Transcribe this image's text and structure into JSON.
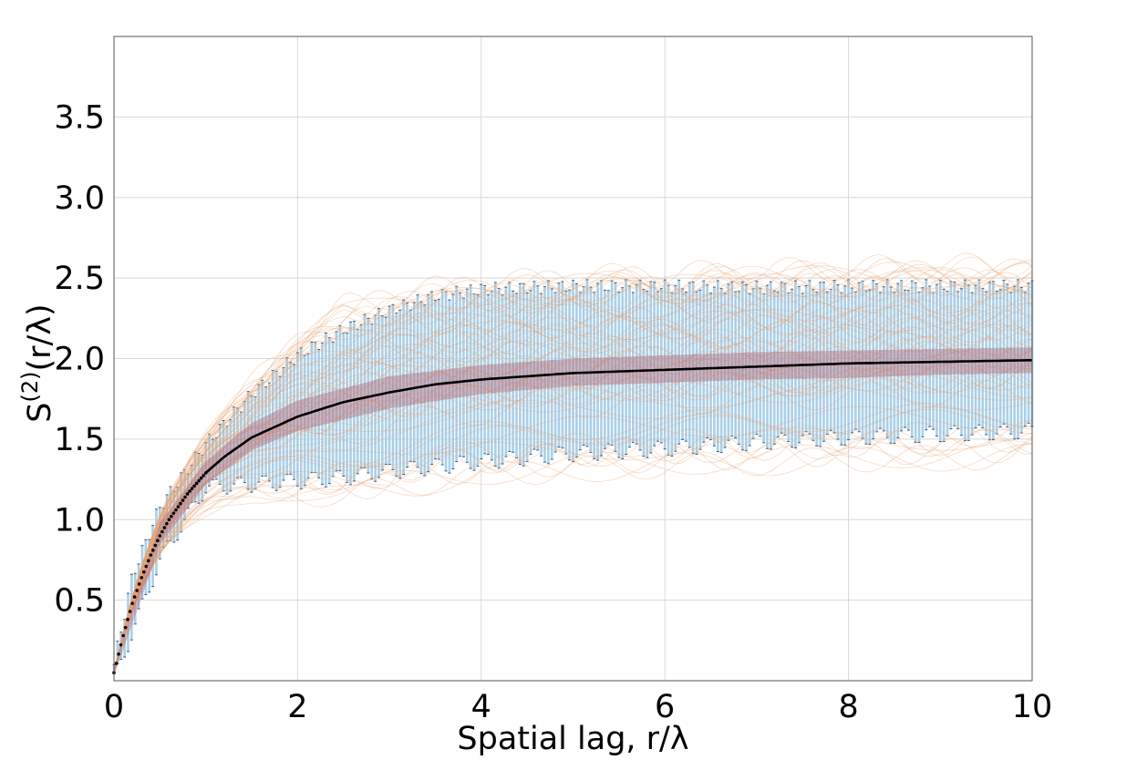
{
  "chart_data": {
    "type": "line",
    "title": "",
    "xlabel": "Spatial lag, r/λ",
    "ylabel": "Ŝ⁽²⁾(r/λ)",
    "ylabel_parts": {
      "base": "S",
      "hat": "^",
      "sup": "(2)",
      "arg": "(r/λ)"
    },
    "xlim": [
      0,
      10
    ],
    "ylim": [
      0,
      4.0
    ],
    "grid": true,
    "x_ticks": [
      0,
      2,
      4,
      6,
      8,
      10
    ],
    "x_tick_labels": [
      "0",
      "2",
      "4",
      "6",
      "8",
      "10"
    ],
    "y_ticks": [
      0.5,
      1.0,
      1.5,
      2.0,
      2.5,
      3.0,
      3.5
    ],
    "y_tick_labels": [
      "0.5",
      "1.0",
      "1.5",
      "2.0",
      "2.5",
      "3.0",
      "3.5"
    ],
    "colors": {
      "mean": "#000000",
      "band": "#a9cfe8",
      "band_edge": "#3d5a7a",
      "realizations": "#e8a070",
      "inner_band": "#b06a7a"
    },
    "series": [
      {
        "role": "mean",
        "x": [
          0,
          0.1,
          0.2,
          0.3,
          0.4,
          0.5,
          0.6,
          0.8,
          1.0,
          1.2,
          1.5,
          2.0,
          2.5,
          3.0,
          3.5,
          4.0,
          5.0,
          6.0,
          7.0,
          8.0,
          9.0,
          10.0
        ],
        "y": [
          0.05,
          0.28,
          0.48,
          0.64,
          0.78,
          0.9,
          1.0,
          1.16,
          1.29,
          1.39,
          1.51,
          1.64,
          1.73,
          1.79,
          1.84,
          1.87,
          1.91,
          1.93,
          1.95,
          1.97,
          1.98,
          1.99
        ]
      },
      {
        "role": "band_upper",
        "x": [
          0,
          0.2,
          0.5,
          1.0,
          1.5,
          2.0,
          2.5,
          3.0,
          3.5,
          4.0,
          5.0,
          6.0,
          7.0,
          8.0,
          9.0,
          10.0
        ],
        "y": [
          0.1,
          0.65,
          1.08,
          1.47,
          1.78,
          2.02,
          2.18,
          2.3,
          2.39,
          2.43,
          2.45,
          2.45,
          2.44,
          2.45,
          2.45,
          2.45
        ]
      },
      {
        "role": "band_lower",
        "x": [
          0,
          0.2,
          0.5,
          1.0,
          1.5,
          2.0,
          2.5,
          3.0,
          3.5,
          4.0,
          5.0,
          6.0,
          7.0,
          8.0,
          9.0,
          10.0
        ],
        "y": [
          0.0,
          0.3,
          0.75,
          1.2,
          1.22,
          1.24,
          1.26,
          1.3,
          1.33,
          1.36,
          1.41,
          1.44,
          1.48,
          1.51,
          1.53,
          1.55
        ]
      },
      {
        "role": "inner_band_upper",
        "x": [
          0,
          0.5,
          1.0,
          1.5,
          2.0,
          3.0,
          4.0,
          5.0,
          6.0,
          7.0,
          8.0,
          9.0,
          10.0
        ],
        "y": [
          0.08,
          0.98,
          1.36,
          1.6,
          1.74,
          1.89,
          1.96,
          2.0,
          2.02,
          2.04,
          2.05,
          2.06,
          2.07
        ]
      },
      {
        "role": "inner_band_lower",
        "x": [
          0,
          0.5,
          1.0,
          1.5,
          2.0,
          3.0,
          4.0,
          5.0,
          6.0,
          7.0,
          8.0,
          9.0,
          10.0
        ],
        "y": [
          0.03,
          0.84,
          1.22,
          1.43,
          1.55,
          1.69,
          1.78,
          1.83,
          1.85,
          1.87,
          1.88,
          1.9,
          1.91
        ]
      }
    ]
  }
}
